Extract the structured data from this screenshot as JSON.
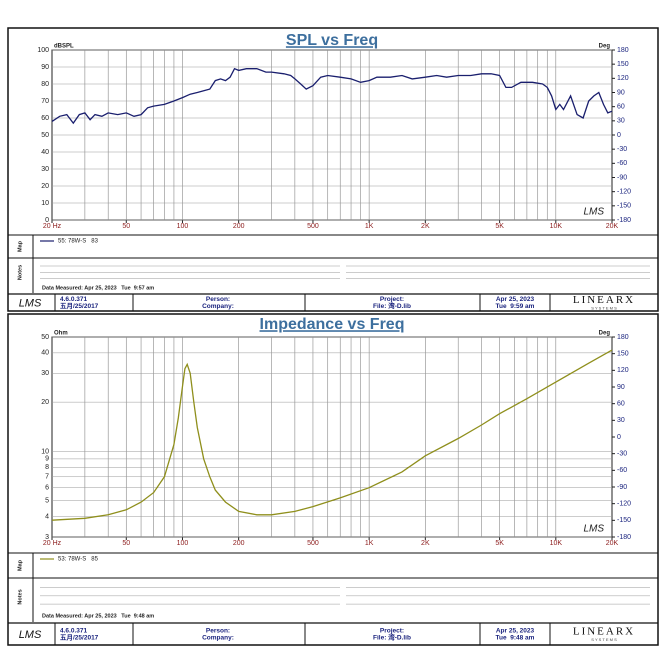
{
  "chart_data": [
    {
      "type": "line",
      "title": "SPL vs Freq",
      "ylabel": "dBSPL",
      "y2label": "Deg",
      "watermark": "LMS",
      "xlog": true,
      "ylog": false,
      "xlim": [
        20,
        20000
      ],
      "xticks": [
        {
          "value": 20,
          "label": "20 Hz"
        },
        50,
        100,
        200,
        500,
        {
          "value": 1000,
          "label": "1K"
        },
        {
          "value": 2000,
          "label": "2K"
        },
        {
          "value": 5000,
          "label": "5K"
        },
        {
          "value": 10000,
          "label": "10K"
        },
        {
          "value": 20000,
          "label": "20K"
        }
      ],
      "xgrid": [
        30,
        40,
        50,
        60,
        70,
        80,
        90,
        100,
        200,
        300,
        400,
        500,
        600,
        700,
        800,
        900,
        1000,
        2000,
        3000,
        4000,
        5000,
        6000,
        7000,
        8000,
        9000,
        10000
      ],
      "ylim": [
        0,
        100
      ],
      "yticks": [
        0,
        10,
        20,
        30,
        40,
        50,
        60,
        70,
        80,
        90,
        100
      ],
      "y2lim": [
        -180,
        180
      ],
      "y2ticks": [
        -180,
        -150,
        -120,
        -90,
        -60,
        -30,
        0,
        30,
        60,
        90,
        120,
        150,
        180
      ],
      "grid": true,
      "x": [
        20,
        22,
        24,
        26,
        28,
        30,
        32,
        34,
        37,
        40,
        45,
        50,
        55,
        60,
        65,
        70,
        80,
        90,
        100,
        110,
        120,
        130,
        140,
        150,
        160,
        170,
        180,
        190,
        200,
        220,
        250,
        280,
        300,
        350,
        380,
        400,
        430,
        460,
        500,
        550,
        600,
        700,
        800,
        900,
        1000,
        1100,
        1300,
        1500,
        1700,
        2000,
        2300,
        2600,
        3000,
        3500,
        4000,
        4500,
        5000,
        5400,
        5800,
        6500,
        7500,
        8500,
        9000,
        9500,
        10000,
        10500,
        11000,
        12000,
        13000,
        14000,
        15000,
        16000,
        17000,
        18000,
        19000,
        20000
      ],
      "series": [
        {
          "name": "55: 78W-S   83",
          "color": "#1a1f6e",
          "values": [
            58,
            61,
            62,
            57,
            62,
            63,
            59,
            62,
            61,
            63,
            62,
            63,
            61,
            62,
            66,
            67,
            68,
            70,
            72,
            74,
            75,
            76,
            77,
            82,
            83,
            82,
            84,
            89,
            88,
            89,
            89,
            87,
            87,
            86,
            85,
            83,
            80,
            77,
            79,
            84,
            85,
            84,
            83,
            81,
            82,
            84,
            84,
            85,
            83,
            84,
            85,
            84,
            85,
            85,
            86,
            86,
            85,
            78,
            78,
            81,
            81,
            80,
            78,
            73,
            65,
            68,
            65,
            73,
            62,
            60,
            70,
            73,
            75,
            68,
            63,
            64
          ]
        }
      ]
    },
    {
      "type": "line",
      "title": "Impedance vs Freq",
      "ylabel": "Ohm",
      "y2label": "Deg",
      "watermark": "LMS",
      "xlog": true,
      "ylog": true,
      "xlim": [
        20,
        20000
      ],
      "xticks": [
        {
          "value": 20,
          "label": "20 Hz"
        },
        50,
        100,
        200,
        500,
        {
          "value": 1000,
          "label": "1K"
        },
        {
          "value": 2000,
          "label": "2K"
        },
        {
          "value": 5000,
          "label": "5K"
        },
        {
          "value": 10000,
          "label": "10K"
        },
        {
          "value": 20000,
          "label": "20K"
        }
      ],
      "xgrid": [
        30,
        40,
        50,
        60,
        70,
        80,
        90,
        100,
        200,
        300,
        400,
        500,
        600,
        700,
        800,
        900,
        1000,
        2000,
        3000,
        4000,
        5000,
        6000,
        7000,
        8000,
        9000,
        10000
      ],
      "ylim": [
        3,
        50
      ],
      "yticks": [
        3,
        4,
        5,
        6,
        7,
        8,
        9,
        10,
        20,
        30,
        40,
        50
      ],
      "y2lim": [
        -180,
        180
      ],
      "y2ticks": [
        -180,
        -150,
        -120,
        -90,
        -60,
        -30,
        0,
        30,
        60,
        90,
        120,
        150,
        180
      ],
      "grid": true,
      "x": [
        20,
        30,
        40,
        50,
        60,
        70,
        80,
        90,
        95,
        100,
        103,
        106,
        110,
        115,
        120,
        130,
        140,
        150,
        170,
        200,
        250,
        300,
        400,
        500,
        700,
        1000,
        1500,
        2000,
        3000,
        4000,
        5000,
        7000,
        10000,
        15000,
        20000
      ],
      "series": [
        {
          "name": "53: 78W-S   85",
          "color": "#8f8f1c",
          "values": [
            3.8,
            3.9,
            4.1,
            4.4,
            4.9,
            5.6,
            7,
            11,
            16,
            25,
            32,
            34,
            30,
            20,
            14,
            9,
            7,
            5.8,
            4.9,
            4.3,
            4.1,
            4.1,
            4.3,
            4.6,
            5.2,
            6.0,
            7.5,
            9.4,
            12,
            14.5,
            17,
            21,
            26.5,
            34.6,
            41.6
          ]
        }
      ]
    }
  ],
  "panels": [
    {
      "map_label": "Map",
      "notes_label": "Notes",
      "measured": "Data Measured: Apr 25, 2023   Tue  9:57 am",
      "logo": "LMS",
      "version": "4.6.0.371",
      "build_date": "五月/25/2017",
      "person": "Person:",
      "company": "Company:",
      "project": "Project:",
      "file": "File: 湾-D.lib",
      "date": "Apr 25, 2023",
      "time": "Tue  9:59 am",
      "brand": "LINEARX",
      "brand_sub": "S Y S T E M S"
    },
    {
      "map_label": "Map",
      "notes_label": "Notes",
      "measured": "Data Measured: Apr 25, 2023   Tue  9:48 am",
      "logo": "LMS",
      "version": "4.6.0.371",
      "build_date": "五月/25/2017",
      "person": "Person:",
      "company": "Company:",
      "project": "Project:",
      "file": "File: 湾-D.lib",
      "date": "Apr 25, 2023",
      "time": "Tue  9:48 am",
      "brand": "LINEARX",
      "brand_sub": "S Y S T E M S"
    }
  ]
}
